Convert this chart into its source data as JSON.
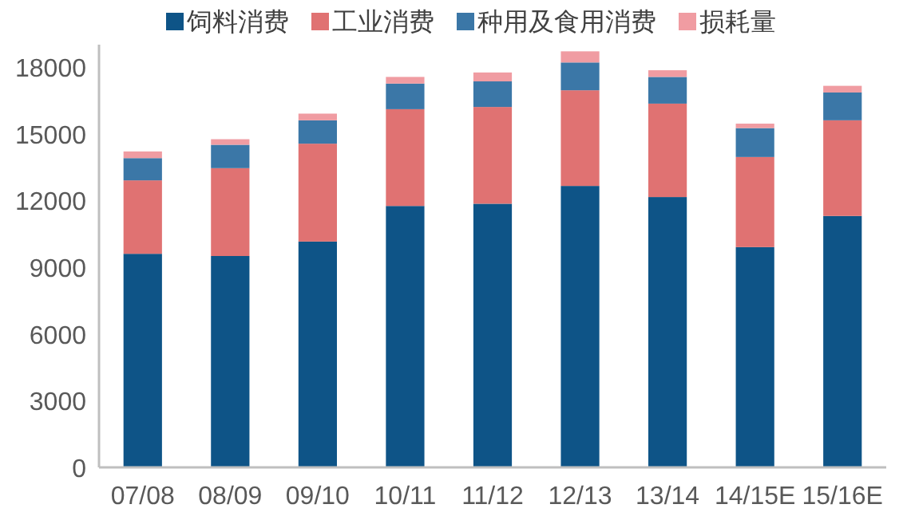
{
  "chart_data": {
    "type": "bar",
    "stacked": true,
    "categories": [
      "07/08",
      "08/09",
      "09/10",
      "10/11",
      "11/12",
      "12/13",
      "13/14",
      "14/15E",
      "15/16E"
    ],
    "series": [
      {
        "name": "饲料消费",
        "color": "#0e5487",
        "values": [
          9600,
          9500,
          10150,
          11750,
          11850,
          12650,
          12150,
          9900,
          11300
        ]
      },
      {
        "name": "工业消费",
        "color": "#e07272",
        "values": [
          3300,
          3950,
          4400,
          4350,
          4350,
          4300,
          4200,
          4050,
          4300
        ]
      },
      {
        "name": "种用及食用消费",
        "color": "#3b77a7",
        "values": [
          1000,
          1050,
          1050,
          1150,
          1150,
          1250,
          1200,
          1300,
          1250
        ]
      },
      {
        "name": "损耗量",
        "color": "#f09ca2",
        "values": [
          300,
          250,
          300,
          300,
          400,
          500,
          300,
          200,
          300
        ]
      }
    ],
    "ylim": [
      0,
      19000
    ],
    "yticks": [
      0,
      3000,
      6000,
      9000,
      12000,
      15000,
      18000
    ],
    "grid": false,
    "legend": "top"
  }
}
